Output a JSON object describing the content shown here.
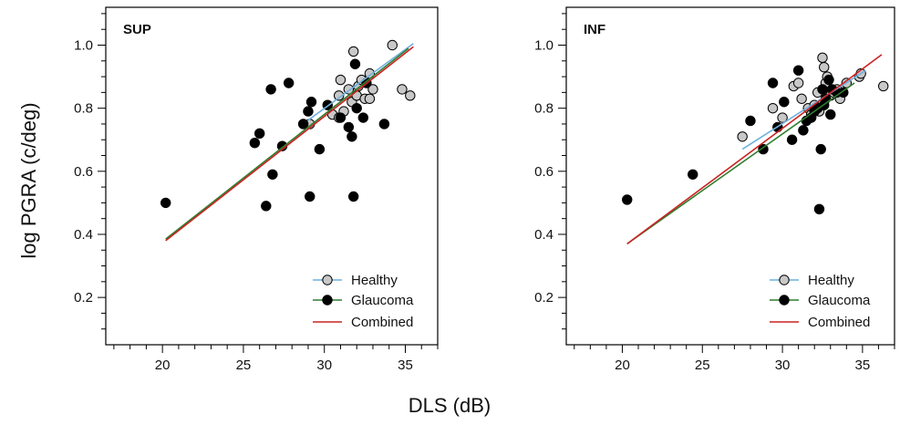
{
  "figure": {
    "ylabel": "log PGRA (c/deg)",
    "xlabel": "DLS (dB)"
  },
  "legend": [
    {
      "label": "Healthy",
      "line_color": "#6fb1de",
      "marker_fill": "#c8c8c8"
    },
    {
      "label": "Glaucoma",
      "line_color": "#2e7d2e",
      "marker_fill": "#000000"
    },
    {
      "label": "Combined",
      "line_color": "#cc2222",
      "marker_fill": null
    }
  ],
  "chart_data": [
    {
      "type": "scatter",
      "panel_label": "SUP",
      "xlim": [
        16.5,
        37
      ],
      "ylim": [
        0.05,
        1.12
      ],
      "xticks": [
        20,
        25,
        30,
        35
      ],
      "yticks": [
        0.2,
        0.4,
        0.6,
        0.8,
        1.0
      ],
      "ytick_labels": [
        "0.2",
        "0.4",
        "0.6",
        "0.8",
        "1.0"
      ],
      "legend_position": "bottom-right",
      "series": [
        {
          "name": "Healthy",
          "marker": "circle",
          "fill": "#c8c8c8",
          "points": [
            [
              29.1,
              0.75
            ],
            [
              30.5,
              0.78
            ],
            [
              30.9,
              0.77
            ],
            [
              30.9,
              0.84
            ],
            [
              31.0,
              0.89
            ],
            [
              31.2,
              0.79
            ],
            [
              31.5,
              0.86
            ],
            [
              31.7,
              0.82
            ],
            [
              31.8,
              0.98
            ],
            [
              32.0,
              0.84
            ],
            [
              32.1,
              0.87
            ],
            [
              32.3,
              0.89
            ],
            [
              32.5,
              0.83
            ],
            [
              32.8,
              0.91
            ],
            [
              32.8,
              0.83
            ],
            [
              33.0,
              0.86
            ],
            [
              34.2,
              1.0
            ],
            [
              34.8,
              0.86
            ],
            [
              35.3,
              0.84
            ]
          ]
        },
        {
          "name": "Glaucoma",
          "marker": "circle",
          "fill": "#000000",
          "points": [
            [
              20.2,
              0.5
            ],
            [
              25.7,
              0.69
            ],
            [
              26.0,
              0.72
            ],
            [
              26.4,
              0.49
            ],
            [
              26.7,
              0.86
            ],
            [
              26.8,
              0.59
            ],
            [
              27.4,
              0.68
            ],
            [
              27.8,
              0.88
            ],
            [
              28.7,
              0.75
            ],
            [
              29.0,
              0.79
            ],
            [
              29.2,
              0.82
            ],
            [
              29.1,
              0.52
            ],
            [
              29.7,
              0.67
            ],
            [
              30.2,
              0.81
            ],
            [
              31.0,
              0.77
            ],
            [
              31.5,
              0.74
            ],
            [
              31.7,
              0.71
            ],
            [
              31.8,
              0.52
            ],
            [
              31.9,
              0.94
            ],
            [
              32.0,
              0.8
            ],
            [
              32.4,
              0.77
            ],
            [
              32.6,
              0.88
            ],
            [
              33.7,
              0.75
            ]
          ]
        }
      ],
      "fit_lines": [
        {
          "name": "Healthy",
          "x": [
            29.0,
            35.5
          ],
          "y": [
            0.762,
            1.005
          ]
        },
        {
          "name": "Glaucoma",
          "x": [
            20.2,
            35.2
          ],
          "y": [
            0.385,
            0.99
          ]
        },
        {
          "name": "Combined",
          "x": [
            20.2,
            35.5
          ],
          "y": [
            0.38,
            0.995
          ]
        }
      ]
    },
    {
      "type": "scatter",
      "panel_label": "INF",
      "xlim": [
        16.5,
        37
      ],
      "ylim": [
        0.05,
        1.12
      ],
      "xticks": [
        20,
        25,
        30,
        35
      ],
      "yticks": [
        0.2,
        0.4,
        0.6,
        0.8,
        1.0
      ],
      "ytick_labels": [
        "0.2",
        "0.4",
        "0.6",
        "0.8",
        "1.0"
      ],
      "legend_position": "bottom-right",
      "series": [
        {
          "name": "Healthy",
          "marker": "circle",
          "fill": "#c8c8c8",
          "points": [
            [
              27.5,
              0.71
            ],
            [
              29.4,
              0.8
            ],
            [
              30.0,
              0.77
            ],
            [
              30.7,
              0.87
            ],
            [
              31.0,
              0.88
            ],
            [
              31.2,
              0.83
            ],
            [
              31.6,
              0.8
            ],
            [
              31.8,
              0.78
            ],
            [
              32.0,
              0.81
            ],
            [
              32.2,
              0.85
            ],
            [
              32.3,
              0.79
            ],
            [
              32.5,
              0.96
            ],
            [
              32.6,
              0.93
            ],
            [
              32.7,
              0.88
            ],
            [
              32.8,
              0.9
            ],
            [
              33.0,
              0.84
            ],
            [
              33.2,
              0.85
            ],
            [
              33.4,
              0.86
            ],
            [
              33.6,
              0.83
            ],
            [
              34.0,
              0.88
            ],
            [
              34.8,
              0.9
            ],
            [
              34.9,
              0.91
            ],
            [
              36.3,
              0.87
            ]
          ]
        },
        {
          "name": "Glaucoma",
          "marker": "circle",
          "fill": "#000000",
          "points": [
            [
              20.3,
              0.51
            ],
            [
              24.4,
              0.59
            ],
            [
              28.0,
              0.76
            ],
            [
              28.8,
              0.67
            ],
            [
              29.4,
              0.88
            ],
            [
              29.7,
              0.74
            ],
            [
              30.1,
              0.82
            ],
            [
              30.6,
              0.7
            ],
            [
              31.0,
              0.92
            ],
            [
              31.3,
              0.73
            ],
            [
              31.5,
              0.76
            ],
            [
              31.8,
              0.77
            ],
            [
              32.0,
              0.79
            ],
            [
              32.2,
              0.8
            ],
            [
              32.3,
              0.48
            ],
            [
              32.4,
              0.67
            ],
            [
              32.6,
              0.81
            ],
            [
              32.7,
              0.83
            ],
            [
              33.0,
              0.78
            ],
            [
              33.1,
              0.86
            ],
            [
              33.4,
              0.85
            ],
            [
              33.8,
              0.85
            ],
            [
              32.9,
              0.89
            ],
            [
              32.5,
              0.86
            ]
          ]
        }
      ],
      "fit_lines": [
        {
          "name": "Healthy",
          "x": [
            27.5,
            35.2
          ],
          "y": [
            0.67,
            0.92
          ]
        },
        {
          "name": "Glaucoma",
          "x": [
            20.3,
            34.5
          ],
          "y": [
            0.37,
            0.88
          ]
        },
        {
          "name": "Combined",
          "x": [
            20.3,
            36.2
          ],
          "y": [
            0.37,
            0.97
          ]
        }
      ]
    }
  ]
}
